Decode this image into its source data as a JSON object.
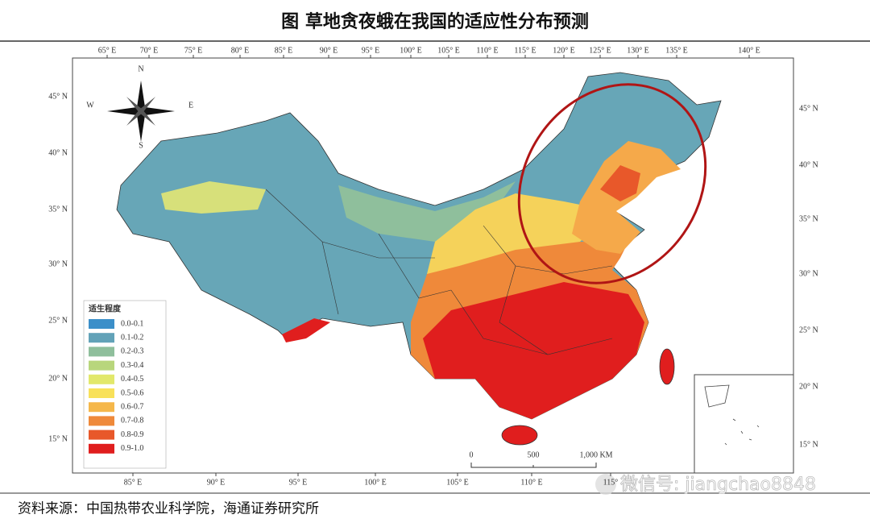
{
  "title": "图 草地贪夜蛾在我国的适应性分布预测",
  "map": {
    "top_longitudes": [
      "65° E",
      "70° E",
      "75° E",
      "80° E",
      "85° E",
      "90° E",
      "95° E",
      "100° E",
      "105° E",
      "110° E",
      "115° E",
      "120° E",
      "125° E",
      "130° E",
      "135° E",
      "140° E"
    ],
    "bottom_longitudes": [
      "85° E",
      "90° E",
      "95° E",
      "100° E",
      "105° E",
      "110° E",
      "115°"
    ],
    "left_latitudes": [
      "45° N",
      "40° N",
      "35° N",
      "30° N",
      "25° N",
      "20° N",
      "15° N"
    ],
    "right_latitudes": [
      "45° N",
      "40° N",
      "35° N",
      "30° N",
      "25° N",
      "20° N",
      "15° N"
    ],
    "compass": {
      "north": "N",
      "south": "S",
      "east": "E",
      "west": "W"
    },
    "legend": {
      "title": "适生程度",
      "items": [
        {
          "label": "0.0-0.1",
          "color": "#3b8fc9"
        },
        {
          "label": "0.1-0.2",
          "color": "#62a2b8"
        },
        {
          "label": "0.2-0.3",
          "color": "#8fbf9c"
        },
        {
          "label": "0.3-0.4",
          "color": "#b8d67c"
        },
        {
          "label": "0.4-0.5",
          "color": "#e2e86b"
        },
        {
          "label": "0.5-0.6",
          "color": "#f8e15a"
        },
        {
          "label": "0.6-0.7",
          "color": "#f5b74a"
        },
        {
          "label": "0.7-0.8",
          "color": "#ef893a"
        },
        {
          "label": "0.8-0.9",
          "color": "#e8582a"
        },
        {
          "label": "0.9-1.0",
          "color": "#e01e1e"
        }
      ]
    },
    "scale_bar": [
      "0",
      "500",
      "1,000 KM"
    ]
  },
  "source": "资料来源：中国热带农业科学院，海通证券研究所",
  "watermark": "微信号: jiangchao8848"
}
